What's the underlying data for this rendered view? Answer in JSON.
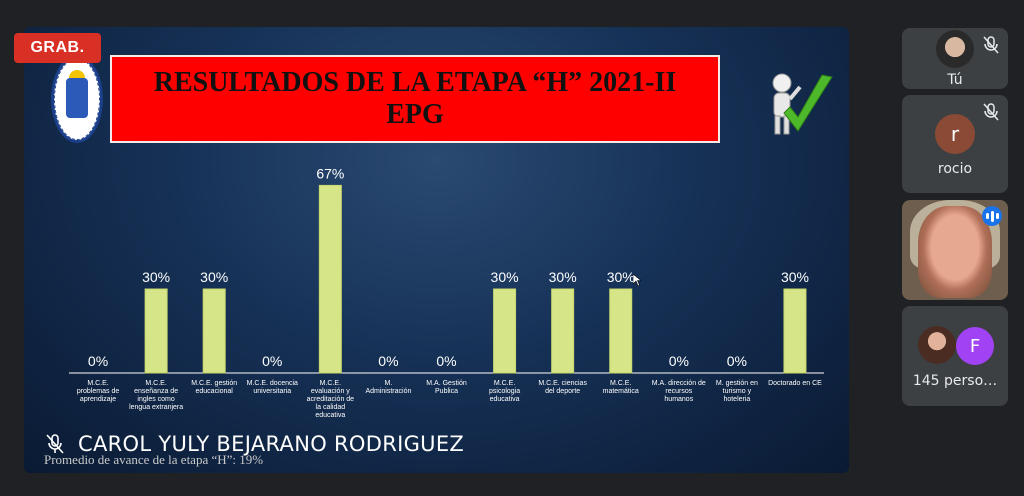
{
  "recording_badge": "GRAB.",
  "slide": {
    "title_line1": "RESULTADOS DE LA ETAPA “H” 2021-II",
    "title_line2": "EPG",
    "footnote": "Promedio de avance de la etapa “H”: 19%"
  },
  "speaker_name": "CAROL YULY BEJARANO RODRIGUEZ",
  "participants": {
    "you_label": "Tú",
    "rocio": {
      "initial": "r",
      "name": "rocio"
    },
    "more": {
      "initial": "F",
      "label": "145 perso…"
    }
  },
  "colors": {
    "bar": "#d6e588",
    "title_bg": "#ff0000",
    "recording": "#d93025"
  },
  "chart_data": {
    "type": "bar",
    "categories": [
      [
        "M.C.E.",
        "problemas de",
        "aprendizaje"
      ],
      [
        "M.C.E.",
        "enseñanza de",
        "ingles como",
        "lengua extranjera"
      ],
      [
        "M.C.E. gestión",
        "educacional"
      ],
      [
        "M.C.E. docencia",
        "universitaria"
      ],
      [
        "M.C.E.",
        "evaluación y",
        "acreditación de",
        "la calidad",
        "educativa"
      ],
      [
        "M.",
        "Administración"
      ],
      [
        "M.A. Gestión",
        "Publica"
      ],
      [
        "M.C.E.",
        "psicologia",
        "educativa"
      ],
      [
        "M.C.E. ciencias",
        "del deporte"
      ],
      [
        "M.C.E.",
        "matemática"
      ],
      [
        "M.A. dirección de",
        "recursos",
        "humanos"
      ],
      [
        "M. gestión en",
        "turismo y",
        "hoteleria"
      ],
      [
        "Doctorado en CE"
      ]
    ],
    "values": [
      0,
      30,
      30,
      0,
      67,
      0,
      0,
      30,
      30,
      30,
      0,
      0,
      30
    ],
    "value_labels": [
      "0%",
      "30%",
      "30%",
      "0%",
      "67%",
      "0%",
      "0%",
      "30%",
      "30%",
      "30%",
      "0%",
      "0%",
      "30%"
    ],
    "ylim": [
      0,
      70
    ],
    "grid": false,
    "legend": "none"
  }
}
